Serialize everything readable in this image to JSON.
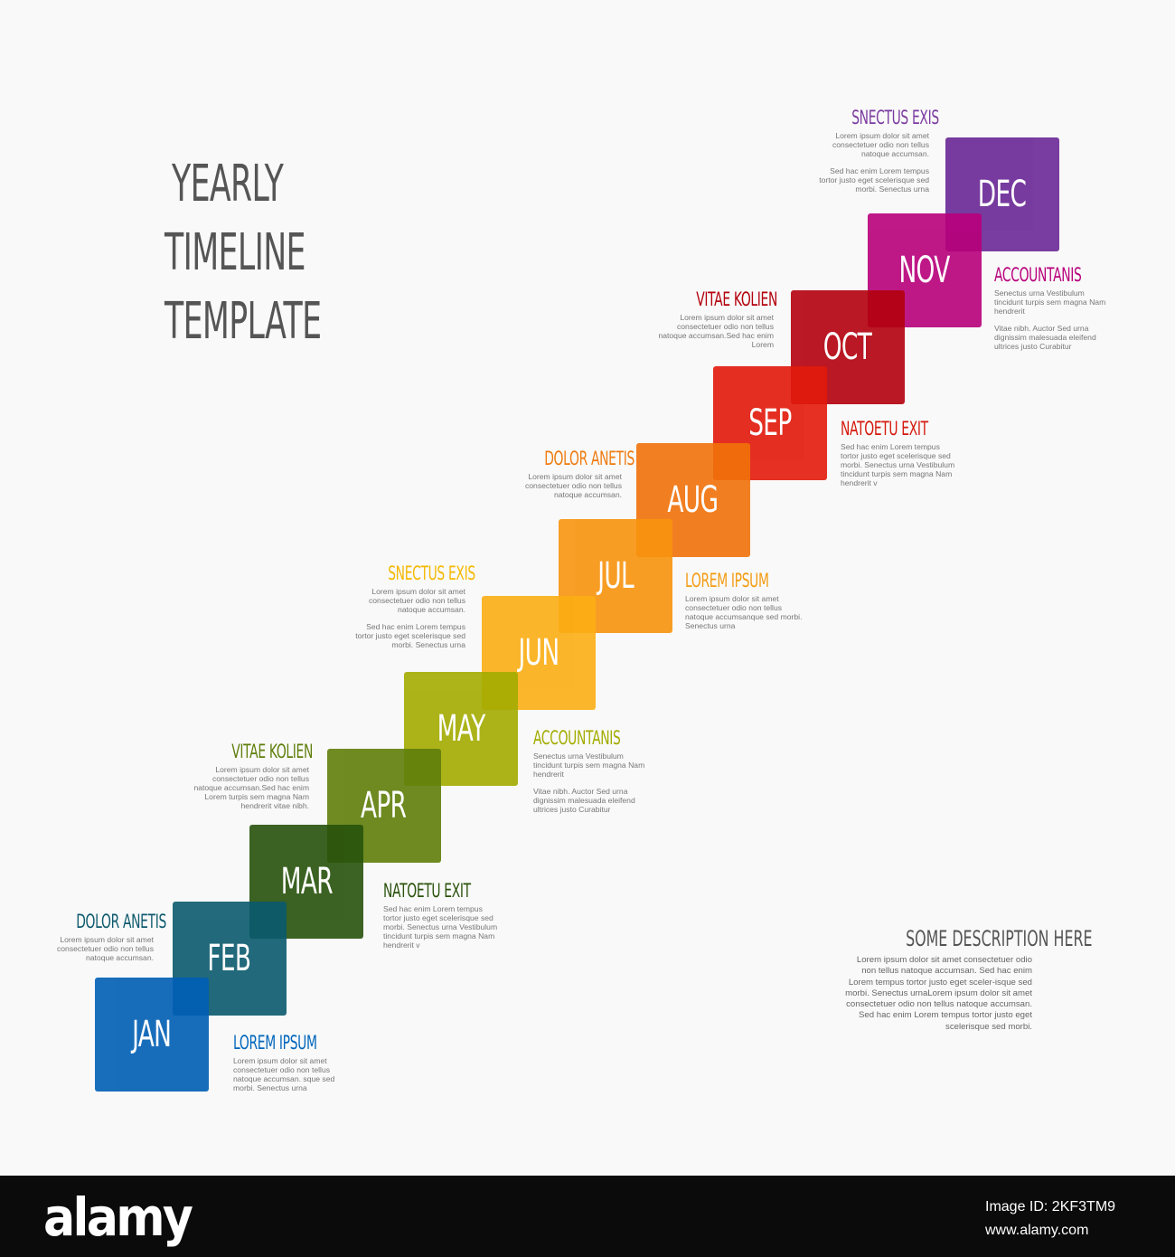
{
  "title": [
    "YEARLY",
    "TIMELINE",
    "TEMPLATE"
  ],
  "months": [
    {
      "label": "JAN",
      "color": "#005eb5"
    },
    {
      "label": "FEB",
      "color": "#0a5a6e"
    },
    {
      "label": "MAR",
      "color": "#27520b"
    },
    {
      "label": "APR",
      "color": "#5f7e0a"
    },
    {
      "label": "MAY",
      "color": "#a3ac00"
    },
    {
      "label": "JUN",
      "color": "#fcae14"
    },
    {
      "label": "JUL",
      "color": "#f8940e"
    },
    {
      "label": "AUG",
      "color": "#f1720a"
    },
    {
      "label": "SEP",
      "color": "#e2190b"
    },
    {
      "label": "OCT",
      "color": "#b3000d"
    },
    {
      "label": "NOV",
      "color": "#b8007b"
    },
    {
      "label": "DEC",
      "color": "#6a2796"
    }
  ],
  "notes": [
    {
      "title": "LOREM IPSUM",
      "color": "#0066bb",
      "body": "Lorem ipsum dolor sit amet consectetuer odio non tellus natoque accumsan. sque sed morbi. Senectus urna",
      "body2": ""
    },
    {
      "title": "DOLOR ANETIS",
      "color": "#0e5a6e",
      "body": "Lorem ipsum dolor sit amet consectetuer odio non tellus natoque accumsan.",
      "body2": ""
    },
    {
      "title": "NATOETU EXIT",
      "color": "#2a520c",
      "body": "Sed hac enim Lorem tempus tortor justo eget scelerisque sed morbi. Senectus urna Vestibulum tincidunt turpis sem magna Nam hendrerit v",
      "body2": ""
    },
    {
      "title": "VITAE KOLIEN",
      "color": "#5f7e0a",
      "body": "Lorem ipsum dolor sit amet consectetuer odio non tellus natoque accumsan.Sed hac enim Lorem turpis sem magna Nam hendrerit vitae nibh.",
      "body2": ""
    },
    {
      "title": "ACCOUNTANIS",
      "color": "#a3ac00",
      "body": "Senectus urna Vestibulum tincidunt turpis sem magna Nam hendrerit",
      "body2": "Vitae nibh. Auctor Sed urna dignissim malesuada eleifend ultrices justo Curabitur"
    },
    {
      "title": "SNECTUS EXIS",
      "color": "#f5b800",
      "body": "Lorem ipsum dolor sit amet consectetuer odio non tellus natoque accumsan.",
      "body2": "Sed hac enim Lorem tempus tortor justo eget scelerisque sed morbi. Senectus urna"
    },
    {
      "title": "LOREM IPSUM",
      "color": "#f39c12",
      "body": "Lorem ipsum dolor sit amet consectetuer odio non tellus natoque accumsanque sed morbi. Senectus urna",
      "body2": ""
    },
    {
      "title": "DOLOR ANETIS",
      "color": "#ee7b10",
      "body": "Lorem ipsum dolor sit amet consectetuer odio non tellus natoque accumsan.",
      "body2": ""
    },
    {
      "title": "NATOETU EXIT",
      "color": "#d4180b",
      "body": "Sed hac enim Lorem tempus tortor justo eget scelerisque sed morbi. Senectus urna Vestibulum tincidunt turpis sem magna Nam hendrerit v",
      "body2": ""
    },
    {
      "title": "VITAE KOLIEN",
      "color": "#b3000d",
      "body": "Lorem ipsum dolor sit amet consectetuer odio non tellus natoque accumsan.Sed hac enim Lorem",
      "body2": ""
    },
    {
      "title": "ACCOUNTANIS",
      "color": "#b8007b",
      "body": "Senectus urna Vestibulum tincidunt turpis sem magna Nam hendrerit",
      "body2": "Vitae nibh. Auctor Sed urna dignissim malesuada eleifend ultrices justo Curabitur"
    },
    {
      "title": "SNECTUS EXIS",
      "color": "#7b3aa0",
      "body": "Lorem ipsum dolor sit amet consectetuer odio non tellus natoque accumsan.",
      "body2": "Sed hac enim Lorem tempus tortor justo eget scelerisque sed morbi. Senectus urna"
    }
  ],
  "description": {
    "title": "SOME DESCRIPTION HERE",
    "body": "Lorem ipsum dolor sit amet consectetuer odio non tellus natoque accumsan. Sed hac enim Lorem tempus tortor justo eget sceler-isque sed morbi. Senectus urnaLorem ipsum dolor sit amet consectetuer odio non tellus natoque accumsan. Sed hac enim Lorem tempus tortor justo eget scelerisque sed morbi."
  },
  "footer": {
    "logo": "alamy",
    "image_id_label": "Image ID: 2KF3TM9",
    "site": "www.alamy.com"
  }
}
